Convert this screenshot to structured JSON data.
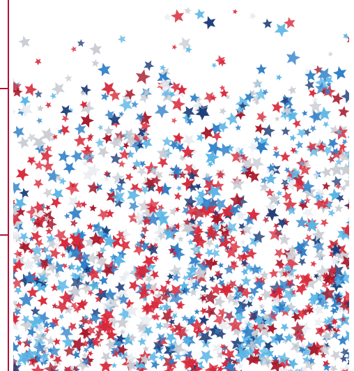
{
  "image": {
    "subject": "star-confetti-photo",
    "colors": {
      "red": "#d8283a",
      "dark_red": "#a8182a",
      "blue": "#2f7fc8",
      "light_blue": "#5bb6e6",
      "navy": "#1f3f7a",
      "silver": "#c9ccd3",
      "pale": "#e9ecf1",
      "background": "#ffffff",
      "border_line": "#b0103a"
    }
  }
}
